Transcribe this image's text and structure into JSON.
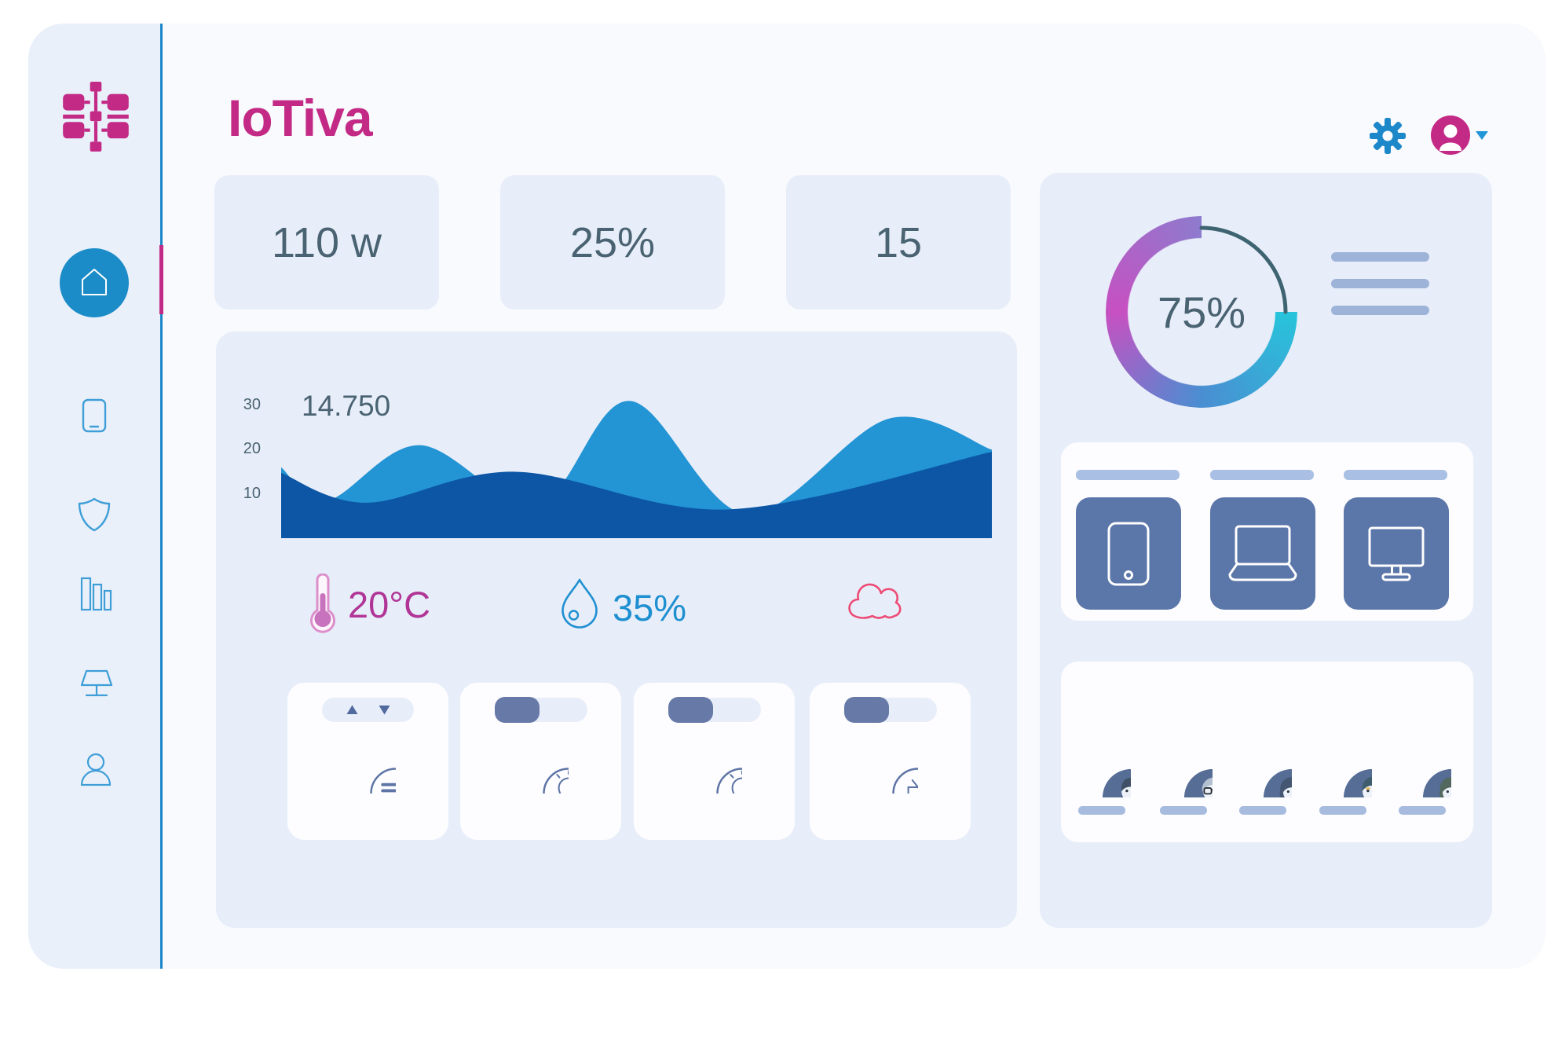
{
  "window": {
    "title": "IoTiva Smart Home Dashboard"
  },
  "brand": {
    "name": "IoTiva",
    "color": "#c32a86",
    "logo_icon": "circuit-hub-icon"
  },
  "header": {
    "settings_icon": {
      "name": "gear-icon",
      "color": "#1c87c9"
    },
    "user_menu": {
      "avatar_icon": "user-avatar-icon",
      "avatar_color": "#c32a86",
      "caret_icon": "chevron-down-icon",
      "caret_color": "#2196d9"
    }
  },
  "sidebar": {
    "active_color": "#1c8cc8",
    "indicator_color": "#c32a86",
    "items": [
      {
        "id": "home",
        "icon": "home-icon",
        "active": true
      },
      {
        "id": "devices",
        "icon": "tablet-icon",
        "active": false
      },
      {
        "id": "security",
        "icon": "shield-icon",
        "active": false
      },
      {
        "id": "statistics",
        "icon": "bar-chart-icon",
        "active": false
      },
      {
        "id": "lighting",
        "icon": "lamp-icon",
        "active": false
      },
      {
        "id": "profile",
        "icon": "user-icon",
        "active": false
      }
    ]
  },
  "stats": {
    "text_color": "#4a6372",
    "cards": [
      {
        "value": "110 w"
      },
      {
        "value": "25%"
      },
      {
        "value": "15"
      }
    ]
  },
  "chart_data": {
    "type": "area",
    "title": "",
    "value_label": "14.750",
    "yticks": [
      "30",
      "20",
      "10"
    ],
    "ylim": [
      0,
      33
    ],
    "x_domain": [
      0,
      1
    ],
    "grid": false,
    "legend": false,
    "series": [
      {
        "name": "consumption-light",
        "color": "#2394d4",
        "points": [
          [
            0,
            16
          ],
          [
            0.065,
            8.5
          ],
          [
            0.195,
            21
          ],
          [
            0.36,
            7.5
          ],
          [
            0.49,
            31
          ],
          [
            0.655,
            5.5
          ],
          [
            0.855,
            27
          ],
          [
            1,
            20
          ]
        ]
      },
      {
        "name": "consumption-dark",
        "color": "#0c56a5",
        "points": [
          [
            0,
            14.75
          ],
          [
            0.12,
            8
          ],
          [
            0.33,
            15
          ],
          [
            0.63,
            6.5
          ],
          [
            1,
            19.5
          ]
        ]
      }
    ]
  },
  "sensors": {
    "temperature": {
      "value": "20°C",
      "color": "#b03597",
      "icon": "thermometer-icon"
    },
    "humidity": {
      "value": "35%",
      "color": "#1e8fd0",
      "icon": "water-drop-icon"
    },
    "weather": {
      "icon": "cloud-icon",
      "color": "#ed4b76"
    }
  },
  "controls": {
    "cards": [
      {
        "id": "blinds",
        "icon": "blinds-icon",
        "symbol": "#ic-blinds",
        "control": "up-down-stepper"
      },
      {
        "id": "light-1",
        "icon": "light-bulb-icon",
        "symbol": "#ic-bulb",
        "control": "toggle",
        "state": "off"
      },
      {
        "id": "light-2",
        "icon": "light-bulb-icon",
        "symbol": "#ic-bulb",
        "control": "toggle",
        "state": "off"
      },
      {
        "id": "tv",
        "icon": "tv-icon",
        "symbol": "#ic-tv",
        "control": "toggle",
        "state": "off"
      }
    ]
  },
  "summary_donut": {
    "percent_label": "75%",
    "value": 75,
    "ring_colors": {
      "top_start": "#8d7bce",
      "left": "#c750c1",
      "bottom": "#4a8ed2",
      "end_cyan": "#27c4db"
    },
    "remainder_color": "#3e6471"
  },
  "devices_panel": {
    "tiles": [
      {
        "icon": "tablet-icon",
        "symbol": "#ic-tablet"
      },
      {
        "icon": "laptop-icon",
        "symbol": "#ic-laptop"
      },
      {
        "icon": "monitor-icon",
        "symbol": "#ic-monitor"
      }
    ]
  },
  "users_panel": {
    "avatars": [
      {
        "icon": "avatar-bearded-man",
        "symbol": "#av-1"
      },
      {
        "icon": "avatar-man-glasses",
        "symbol": "#av-2"
      },
      {
        "icon": "avatar-woman-yellow",
        "symbol": "#av-3"
      },
      {
        "icon": "avatar-man-mustache",
        "symbol": "#av-4"
      },
      {
        "icon": "avatar-woman-blue",
        "symbol": "#av-5"
      }
    ]
  }
}
